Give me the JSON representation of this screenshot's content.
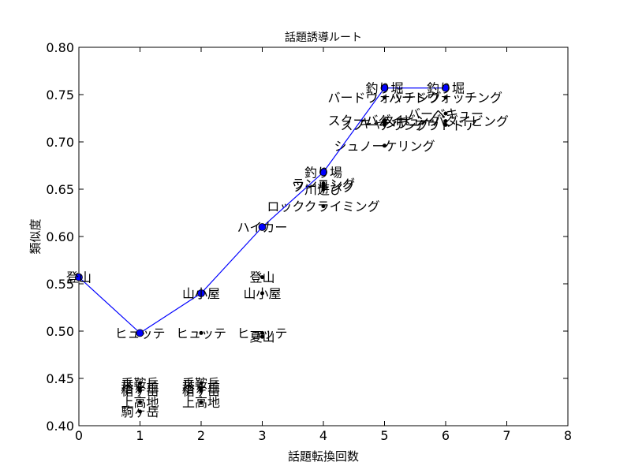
{
  "chart_data": {
    "type": "line",
    "title": "話題誘導ルート",
    "xlabel": "話題転換回数",
    "ylabel": "類似度",
    "xlim": [
      0,
      8
    ],
    "ylim": [
      0.4,
      0.8
    ],
    "xticks": [
      "0",
      "1",
      "2",
      "3",
      "4",
      "5",
      "6",
      "7",
      "8"
    ],
    "yticks": [
      "0.40",
      "0.45",
      "0.50",
      "0.55",
      "0.60",
      "0.65",
      "0.70",
      "0.75",
      "0.80"
    ],
    "grid": false,
    "colors": {
      "line": "#0000ff",
      "marker": "#0000ff",
      "candidate": "#000000"
    },
    "series": [
      {
        "points": [
          {
            "x": 0,
            "y": 0.557,
            "label": "登山"
          },
          {
            "x": 1,
            "y": 0.498,
            "label": "ヒュッテ"
          },
          {
            "x": 2,
            "y": 0.54,
            "label": "山小屋"
          },
          {
            "x": 3,
            "y": 0.61,
            "label": "ハイカー"
          },
          {
            "x": 4,
            "y": 0.668,
            "label": "釣り場"
          },
          {
            "x": 5,
            "y": 0.757,
            "label": "釣り堀"
          },
          {
            "x": 6,
            "y": 0.757,
            "label": "釣り堀"
          }
        ]
      }
    ],
    "candidates": [
      {
        "x": 1,
        "y": 0.445,
        "label": "乗鞍岳"
      },
      {
        "x": 1,
        "y": 0.44,
        "label": "槍ヶ岳"
      },
      {
        "x": 1,
        "y": 0.437,
        "label": "槍ヶ岳"
      },
      {
        "x": 1,
        "y": 0.425,
        "label": "上高地"
      },
      {
        "x": 1,
        "y": 0.415,
        "label": "駒ヶ岳"
      },
      {
        "x": 2,
        "y": 0.498,
        "label": "ヒュッテ"
      },
      {
        "x": 2,
        "y": 0.445,
        "label": "乗鞍岳"
      },
      {
        "x": 2,
        "y": 0.44,
        "label": "槍ヶ岳"
      },
      {
        "x": 2,
        "y": 0.437,
        "label": "槍ヶ岳"
      },
      {
        "x": 2,
        "y": 0.425,
        "label": "上高地"
      },
      {
        "x": 3,
        "y": 0.557,
        "label": "登山"
      },
      {
        "x": 3,
        "y": 0.54,
        "label": "山小屋"
      },
      {
        "x": 3,
        "y": 0.498,
        "label": "ヒュッテ"
      },
      {
        "x": 3,
        "y": 0.494,
        "label": "夏山"
      },
      {
        "x": 4,
        "y": 0.656,
        "label": "ランニング"
      },
      {
        "x": 4,
        "y": 0.653,
        "label": "ツーリング"
      },
      {
        "x": 4,
        "y": 0.65,
        "label": "川遊び"
      },
      {
        "x": 4,
        "y": 0.632,
        "label": "ロッククライミング"
      },
      {
        "x": 5,
        "y": 0.747,
        "label": "バードウォッチング"
      },
      {
        "x": 5,
        "y": 0.723,
        "label": "スクーバダイビング"
      },
      {
        "x": 5,
        "y": 0.72,
        "label": "キャンプ"
      },
      {
        "x": 5,
        "y": 0.718,
        "label": "スノーケリング"
      },
      {
        "x": 5,
        "y": 0.696,
        "label": "シュノーケリング"
      },
      {
        "x": 6,
        "y": 0.747,
        "label": "バードウォッチング"
      },
      {
        "x": 6,
        "y": 0.73,
        "label": "バーベキュー"
      },
      {
        "x": 6,
        "y": 0.722,
        "label": "スキューバダイビング"
      },
      {
        "x": 6,
        "y": 0.718,
        "label": "アウトドア"
      }
    ]
  }
}
